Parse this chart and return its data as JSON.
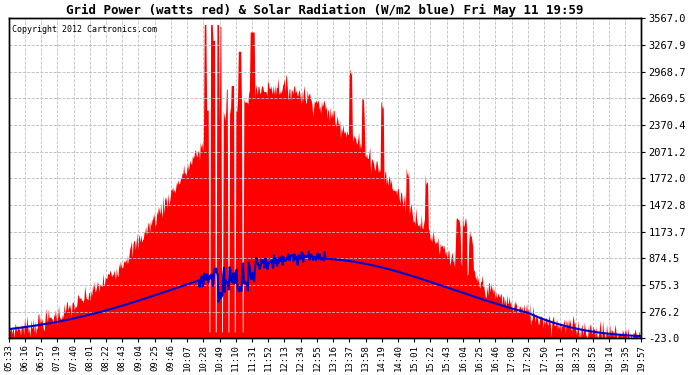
{
  "title": "Grid Power (watts red) & Solar Radiation (W/m2 blue) Fri May 11 19:59",
  "copyright": "Copyright 2012 Cartronics.com",
  "yticks": [
    3567.0,
    3267.9,
    2968.7,
    2669.5,
    2370.4,
    2071.2,
    1772.0,
    1472.8,
    1173.7,
    874.5,
    575.3,
    276.2,
    -23.0
  ],
  "ymin": -23.0,
  "ymax": 3567.0,
  "bg_color": "#ffffff",
  "grid_color": "#bbbbbb",
  "red_color": "#ff0000",
  "blue_color": "#0000cc",
  "xtick_labels": [
    "05:33",
    "06:16",
    "06:57",
    "07:19",
    "07:40",
    "08:01",
    "08:22",
    "08:43",
    "09:04",
    "09:25",
    "09:46",
    "10:07",
    "10:28",
    "10:49",
    "11:10",
    "11:31",
    "11:52",
    "12:13",
    "12:34",
    "12:55",
    "13:16",
    "13:37",
    "13:58",
    "14:19",
    "14:40",
    "15:01",
    "15:22",
    "15:43",
    "16:04",
    "16:25",
    "16:46",
    "17:08",
    "17:29",
    "17:50",
    "18:11",
    "18:32",
    "18:53",
    "19:14",
    "19:35",
    "19:57"
  ]
}
